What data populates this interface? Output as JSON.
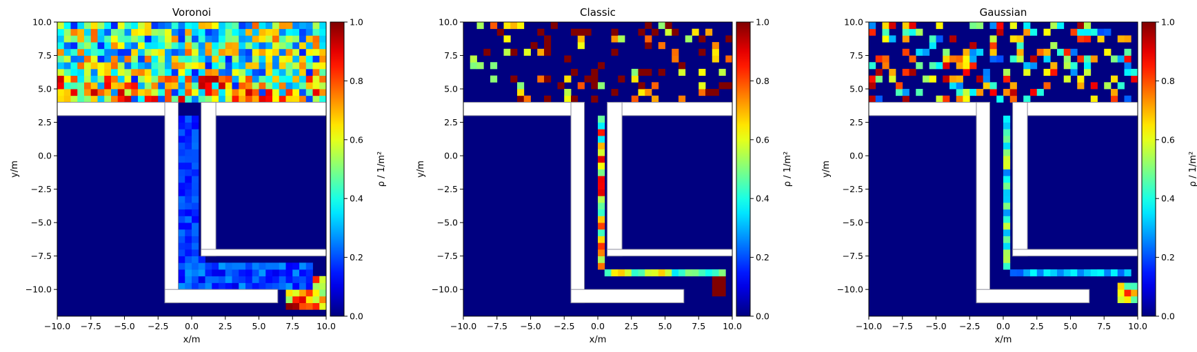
{
  "colorbar": {
    "label": "ρ / 1/m²",
    "range": [
      0.0,
      1.0
    ],
    "ticks": [
      "0.0",
      "0.2",
      "0.4",
      "0.6",
      "0.8",
      "1.0"
    ],
    "colormap": "jet"
  },
  "axes_common": {
    "xlabel": "x/m",
    "ylabel": "y/m",
    "xlim": [
      -10,
      10
    ],
    "ylim": [
      -12,
      10
    ],
    "xticks": [
      "−10.0",
      "−7.5",
      "−5.0",
      "−2.5",
      "0.0",
      "2.5",
      "5.0",
      "7.5",
      "10.0"
    ],
    "yticks": [
      "10.0",
      "7.5",
      "5.0",
      "2.5",
      "0.0",
      "−2.5",
      "−5.0",
      "−7.5",
      "−10.0"
    ]
  },
  "chart_data": [
    {
      "type": "heatmap",
      "title": "Voronoi",
      "xlabel": "x/m",
      "ylabel": "y/m",
      "xlim": [
        -10,
        10
      ],
      "ylim": [
        -12,
        10
      ],
      "cell_size_m": 0.5,
      "regions": [
        {
          "area": "upper room (y 4–10)",
          "density_range": [
            0.05,
            1.0
          ],
          "typical": 0.5
        },
        {
          "area": "vertical corridor (x -1–1)",
          "density_range": [
            0.1,
            0.25
          ]
        },
        {
          "area": "lower corridor (y -8.5 – -10)",
          "density_range": [
            0.1,
            0.3
          ]
        },
        {
          "area": "exit hotspot (x 7.5–10, y -9 – -11)",
          "density_range": [
            0.7,
            1.0
          ]
        }
      ]
    },
    {
      "type": "heatmap",
      "title": "Classic",
      "xlabel": "x/m",
      "ylabel": "y/m",
      "xlim": [
        -10,
        10
      ],
      "ylim": [
        -12,
        10
      ],
      "cell_size_m": 0.5,
      "regions": [
        {
          "area": "upper room (y 4–10)",
          "density_range": [
            0.0,
            1.0
          ],
          "typical": 0.15
        },
        {
          "area": "vertical corridor line (x ≈ 0.5)",
          "density_range": [
            0.4,
            1.0
          ]
        },
        {
          "area": "lower corridor line (y ≈ -8.8)",
          "density_range": [
            0.4,
            0.7
          ]
        },
        {
          "area": "exit (x 8.5–9.5, y ≈ -10)",
          "density_range": [
            1.0,
            1.0
          ]
        }
      ]
    },
    {
      "type": "heatmap",
      "title": "Gaussian",
      "xlabel": "x/m",
      "ylabel": "y/m",
      "xlim": [
        -10,
        10
      ],
      "ylim": [
        -12,
        10
      ],
      "cell_size_m": 0.5,
      "regions": [
        {
          "area": "upper room (y 4–10)",
          "density_range": [
            0.0,
            1.0
          ],
          "typical": 0.3
        },
        {
          "area": "vertical corridor (x ≈ 0.5)",
          "density_range": [
            0.2,
            0.6
          ]
        },
        {
          "area": "lower corridor (y ≈ -8.8)",
          "density_range": [
            0.2,
            0.4
          ]
        },
        {
          "area": "exit (x 8.5–10, y ≈ -10)",
          "density_range": [
            0.4,
            1.0
          ]
        }
      ]
    }
  ]
}
